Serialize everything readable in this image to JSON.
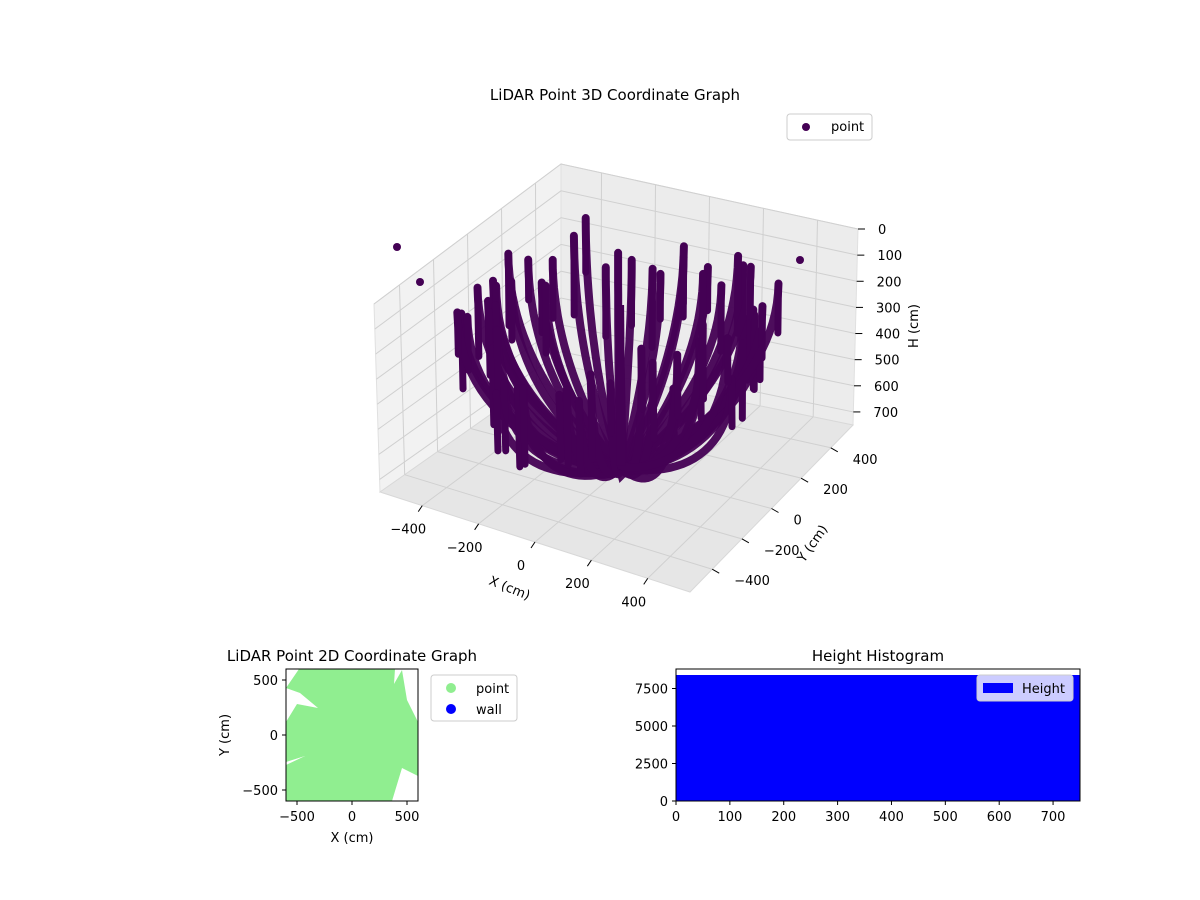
{
  "colors": {
    "point3d": "#440154",
    "point2d": "#90ee90",
    "wall": "#0000ff",
    "histogram": "#0000ff",
    "pane": "#f2f2f2",
    "grid": "#d0d0d0"
  },
  "chart_data": [
    {
      "type": "scatter",
      "title": "LiDAR Point 3D Coordinate Graph",
      "xlabel": "X (cm)",
      "ylabel": "Y (cm)",
      "zlabel": "H (cm)",
      "x_ticks": [
        "−400",
        "−200",
        "0",
        "200",
        "400"
      ],
      "y_ticks": [
        "−400",
        "−200",
        "0",
        "200",
        "400"
      ],
      "z_ticks": [
        "0",
        "100",
        "200",
        "300",
        "400",
        "500",
        "600",
        "700"
      ],
      "z_inverted": true,
      "xlim": [
        -550,
        550
      ],
      "ylim": [
        -550,
        550
      ],
      "zlim": [
        0,
        750
      ],
      "legend": {
        "position": "top-right",
        "entries": [
          "point"
        ]
      },
      "grid": true,
      "description_of_pattern": "dense arcs of points radiating from the center, forming a dome-like cloud from ground up to about 700 cm"
    },
    {
      "type": "scatter",
      "title": "LiDAR Point 2D Coordinate Graph",
      "xlabel": "X (cm)",
      "ylabel": "Y (cm)",
      "x_ticks": [
        "−500",
        "0",
        "500"
      ],
      "y_ticks": [
        "500",
        "0",
        "−500"
      ],
      "xlim": [
        -600,
        600
      ],
      "ylim": [
        -600,
        600
      ],
      "legend": {
        "position": "outside-right",
        "entries": [
          "point",
          "wall"
        ]
      },
      "grid": false
    },
    {
      "type": "bar",
      "title": "Height Histogram",
      "x_ticks": [
        "0",
        "100",
        "200",
        "300",
        "400",
        "500",
        "600",
        "700"
      ],
      "y_ticks": [
        "0",
        "2500",
        "5000",
        "7500"
      ],
      "xlim": [
        0,
        750
      ],
      "ylim": [
        0,
        8800
      ],
      "bins": {
        "start": 0,
        "end": 750,
        "value": 8400
      },
      "legend": {
        "position": "top-right",
        "entries": [
          "Height"
        ]
      },
      "grid": false
    }
  ]
}
